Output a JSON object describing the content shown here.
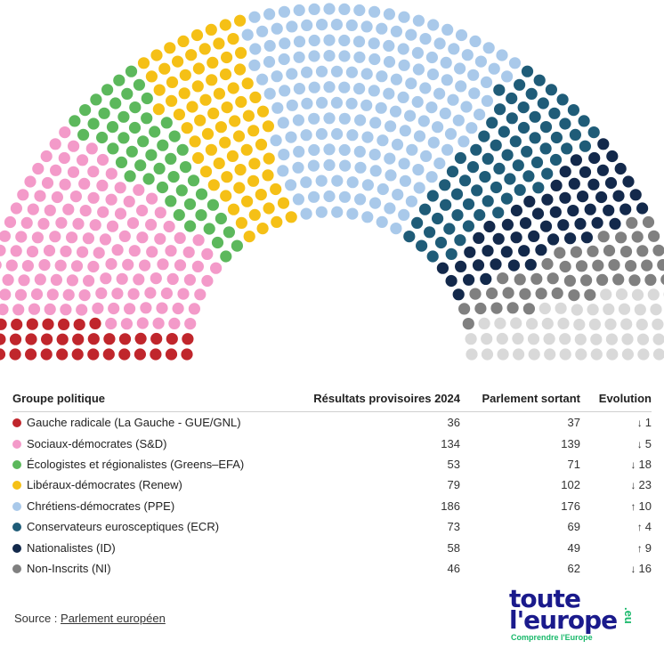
{
  "chart_data": {
    "type": "hemicycle",
    "total_seats": 720,
    "table": {
      "headers": {
        "group": "Groupe politique",
        "results": "Résultats provisoires 2024",
        "outgoing": "Parlement sortant",
        "evolution": "Evolution"
      },
      "rows": [
        {
          "name": "Gauche radicale (La Gauche - GUE/GNL)",
          "color": "#c0262c",
          "seats": 36,
          "outgoing": 37,
          "evolution": "1",
          "direction": "down"
        },
        {
          "name": "Sociaux-démocrates (S&D)",
          "color": "#f39ac9",
          "seats": 134,
          "outgoing": 139,
          "evolution": "5",
          "direction": "down"
        },
        {
          "name": "Écologistes et régionalistes (Greens–EFA)",
          "color": "#5cb85c",
          "seats": 53,
          "outgoing": 71,
          "evolution": "18",
          "direction": "down"
        },
        {
          "name": "Libéraux-démocrates (Renew)",
          "color": "#f5c016",
          "seats": 79,
          "outgoing": 102,
          "evolution": "23",
          "direction": "down"
        },
        {
          "name": "Chrétiens-démocrates (PPE)",
          "color": "#a9c9ea",
          "seats": 186,
          "outgoing": 176,
          "evolution": "10",
          "direction": "up"
        },
        {
          "name": "Conservateurs eurosceptiques (ECR)",
          "color": "#1f5c78",
          "seats": 73,
          "outgoing": 69,
          "evolution": "4",
          "direction": "up"
        },
        {
          "name": "Nationalistes (ID)",
          "color": "#13294b",
          "seats": 58,
          "outgoing": 49,
          "evolution": "9",
          "direction": "up"
        },
        {
          "name": "Non-Inscrits (NI)",
          "color": "#808080",
          "seats": 46,
          "outgoing": 62,
          "evolution": "16",
          "direction": "down"
        }
      ],
      "unassigned": {
        "seats": 55,
        "color": "#d9d9d9"
      }
    }
  },
  "source": {
    "label": "Source : ",
    "link_text": "Parlement européen"
  },
  "logo": {
    "line1": "toute",
    "line2": "l'europe",
    "suffix": ".eu",
    "tagline": "Comprendre l'Europe"
  },
  "arrows": {
    "up": "↑",
    "down": "↓"
  }
}
